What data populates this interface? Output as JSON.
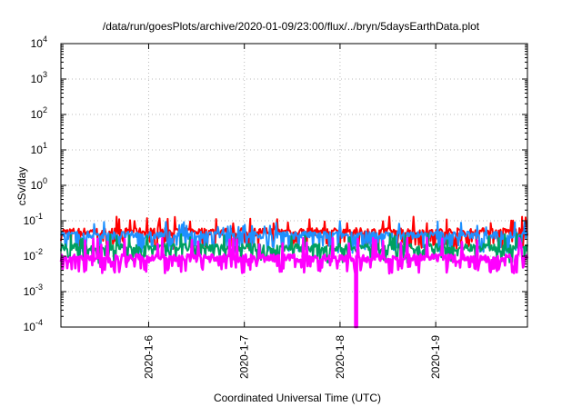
{
  "chart_data": {
    "type": "line",
    "title": "/data/run/goesPlots/archive/2020-01-09/23:00/flux/../bryn/5daysEarthData.plot",
    "xlabel": "Coordinated Universal Time (UTC)",
    "ylabel": "cSv/day",
    "yscale": "log",
    "ylim": [
      0.0001,
      10000
    ],
    "xlim": [
      "2020-01-05 02:00",
      "2020-01-09 23:00"
    ],
    "y_ticks": [
      {
        "base": "10",
        "exp": "-4",
        "value": 0.0001
      },
      {
        "base": "10",
        "exp": "-3",
        "value": 0.001
      },
      {
        "base": "10",
        "exp": "-2",
        "value": 0.01
      },
      {
        "base": "10",
        "exp": "-1",
        "value": 0.1
      },
      {
        "base": "10",
        "exp": "0",
        "value": 1
      },
      {
        "base": "10",
        "exp": "1",
        "value": 10
      },
      {
        "base": "10",
        "exp": "2",
        "value": 100
      },
      {
        "base": "10",
        "exp": "3",
        "value": 1000
      },
      {
        "base": "10",
        "exp": "4",
        "value": 10000
      }
    ],
    "x_ticks": [
      "2020-1-6",
      "2020-1-7",
      "2020-1-8",
      "2020-1-9"
    ],
    "grid": true,
    "legend": "none",
    "series": [
      {
        "color": "#ff0000",
        "base": 0.05,
        "low": 0.02,
        "high": 0.12
      },
      {
        "color": "#1e90ff",
        "base": 0.04,
        "low": 0.015,
        "high": 0.09
      },
      {
        "color": "#00a060",
        "base": 0.018,
        "low": 0.008,
        "high": 0.04
      },
      {
        "color": "#ff00ff",
        "base": 0.009,
        "low": 0.004,
        "high": 0.03
      }
    ],
    "dropout": {
      "x": "2020-01-08 04:00",
      "min": 0.0001
    }
  }
}
